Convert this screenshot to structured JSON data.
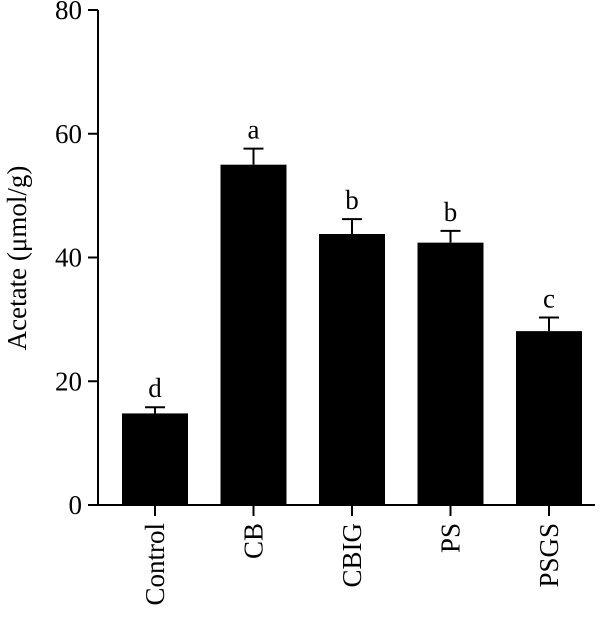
{
  "chart_data": {
    "type": "bar",
    "title": "",
    "xlabel": "",
    "ylabel": "Acetate (μmol/g)",
    "ylim": [
      0,
      80
    ],
    "yticks": [
      "0",
      "20",
      "40",
      "60",
      "80"
    ],
    "ytick_values": [
      0,
      20,
      40,
      60,
      80
    ],
    "grid": false,
    "bar_color": "#000000",
    "categories": [
      "Control",
      "CB",
      "CBIG",
      "PS",
      "PSGS"
    ],
    "values": [
      14.8,
      55.0,
      43.8,
      42.4,
      28.1
    ],
    "error_upper": [
      1.0,
      2.6,
      2.4,
      1.9,
      2.2
    ],
    "significance_letters": [
      "d",
      "a",
      "b",
      "b",
      "c"
    ]
  }
}
